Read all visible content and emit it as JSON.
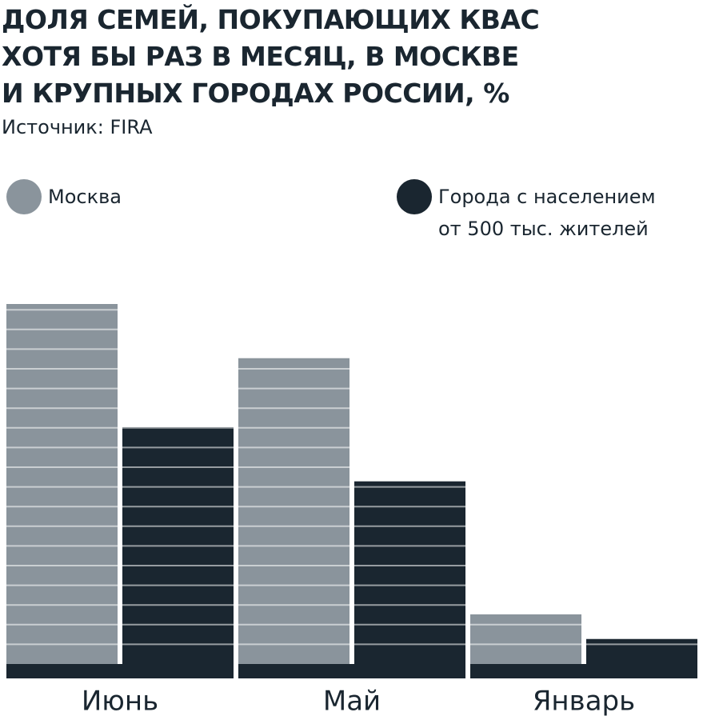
{
  "chart_data": {
    "type": "bar",
    "title": "ДОЛЯ СЕМЕЙ, ПОКУПАЮЩИХ КВАС\nХОТЯ БЫ РАЗ В МЕСЯЦ, В МОСКВЕ\nИ КРУПНЫХ ГОРОДАХ РОССИИ, %",
    "subtitle": "Источник: FIRA",
    "categories": [
      "Июнь",
      "Май",
      "Январь"
    ],
    "series": [
      {
        "name": "Москва",
        "color": "#8a949c",
        "values": [
          38,
          32.5,
          6.5
        ]
      },
      {
        "name": "Города с населением\nот 500 тыс. жителей",
        "color": "#1a2630",
        "values": [
          25.5,
          20,
          4
        ]
      }
    ],
    "ylim": [
      0,
      38
    ]
  }
}
